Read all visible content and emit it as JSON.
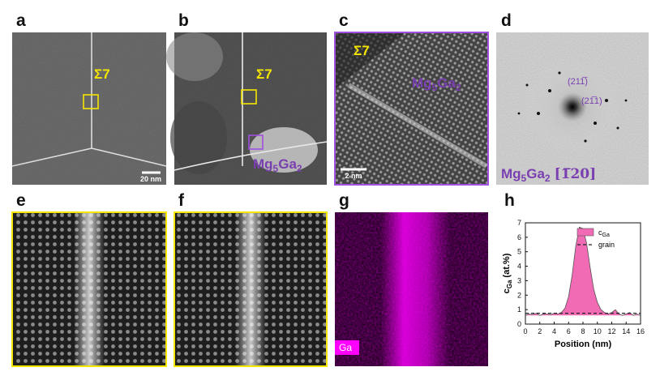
{
  "panels": {
    "a": {
      "label": "a",
      "annotation": "Σ7",
      "scale_bar": "20 nm"
    },
    "b": {
      "label": "b",
      "annotation": "Σ7",
      "phase": [
        "Mg",
        "5",
        "Ga",
        "2"
      ]
    },
    "c": {
      "label": "c",
      "annotation": "Σ7",
      "phase": [
        "Mg",
        "5",
        "Ga",
        "2"
      ],
      "scale_bar": "2 nm"
    },
    "d": {
      "label": "d",
      "phase": [
        "Mg",
        "5",
        "Ga",
        "2"
      ],
      "zone_axis": "[1̅20]",
      "spots": [
        "(211̅)",
        "(21̅1)"
      ]
    },
    "e": {
      "label": "e"
    },
    "f": {
      "label": "f"
    },
    "g": {
      "label": "g",
      "element": "Ga"
    },
    "h": {
      "label": "h"
    }
  },
  "chart_data": {
    "type": "area",
    "xlabel": "Position (nm)",
    "ylabel": [
      "c",
      "Ga",
      "(at.%)"
    ],
    "x": [
      0,
      0.5,
      1,
      1.5,
      2,
      2.5,
      3,
      3.5,
      4,
      4.5,
      5,
      5.5,
      6,
      6.5,
      7,
      7.5,
      8,
      8.5,
      9,
      9.5,
      10,
      10.5,
      11,
      11.5,
      12,
      12.5,
      13,
      13.5,
      14,
      14.5,
      15,
      15.5,
      16
    ],
    "series": [
      {
        "name": [
          "c",
          "Ga"
        ],
        "color": "#f06ab4",
        "values": [
          0.6,
          0.7,
          0.65,
          0.75,
          0.6,
          0.7,
          0.7,
          0.65,
          0.75,
          0.7,
          0.8,
          1.1,
          1.9,
          3.4,
          5.4,
          6.7,
          6.6,
          5.6,
          3.9,
          2.4,
          1.5,
          1.0,
          0.8,
          0.7,
          0.8,
          1.0,
          0.7,
          0.6,
          0.7,
          0.8,
          0.6,
          0.7,
          0.6
        ]
      },
      {
        "name": "grain",
        "color": "#222222",
        "dashed": true,
        "x": [
          0,
          16
        ],
        "values": [
          0.75,
          0.75
        ]
      }
    ],
    "xlim": [
      0,
      16
    ],
    "xticks": [
      0,
      2,
      4,
      6,
      8,
      10,
      12,
      14,
      16
    ],
    "ylim": [
      0,
      7
    ],
    "yticks": [
      0,
      1,
      2,
      3,
      4,
      5,
      6,
      7
    ]
  }
}
